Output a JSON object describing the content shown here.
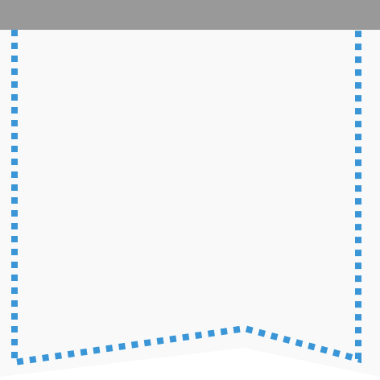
{
  "colors": {
    "top_bar": "#999999",
    "banner_fill": "#f9f9f9",
    "dashed_outline": "#3a96d6",
    "page_background": "#ffffff"
  },
  "shape": {
    "type": "ribbon-banner",
    "outline_style": "dashed"
  }
}
